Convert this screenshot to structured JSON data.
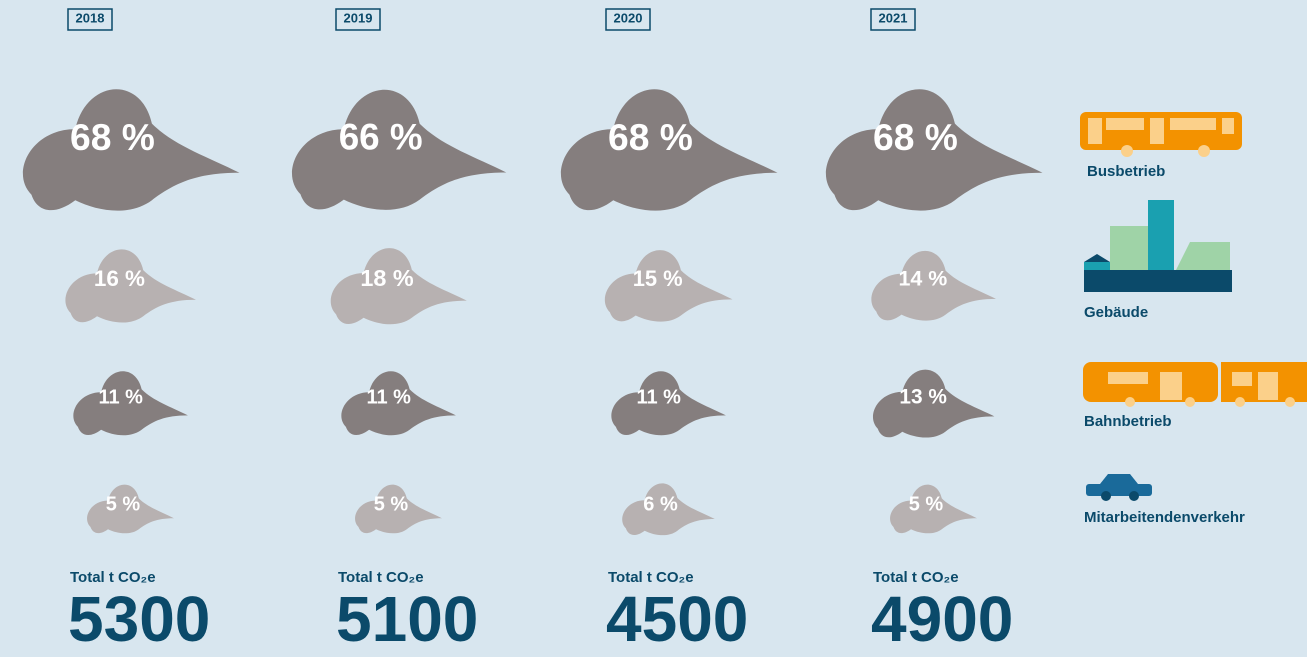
{
  "chart_data": {
    "type": "cloud",
    "categories": [
      "2018",
      "2019",
      "2020",
      "2021"
    ],
    "series": [
      {
        "name": "Busbetrieb",
        "color": "#857e7e",
        "values": [
          68,
          66,
          68,
          68
        ],
        "value_labels": [
          "68 %",
          "66 %",
          "68 %",
          "68 %"
        ]
      },
      {
        "name": "Gebäude",
        "color": "#b7b1b1",
        "values": [
          16,
          18,
          15,
          14
        ],
        "value_labels": [
          "16 %",
          "18 %",
          "15 %",
          "14 %"
        ]
      },
      {
        "name": "Bahnbetrieb",
        "color": "#857e7e",
        "values": [
          11,
          11,
          11,
          13
        ],
        "value_labels": [
          "11 %",
          "11 %",
          "11 %",
          "13 %"
        ]
      },
      {
        "name": "Mitarbeitendenverkehr",
        "color": "#b7b1b1",
        "values": [
          5,
          5,
          6,
          5
        ],
        "value_labels": [
          "5 %",
          "5 %",
          "6 %",
          "5 %"
        ]
      }
    ],
    "totals_label": "Total t CO₂e",
    "totals": [
      5300,
      5100,
      4500,
      4900
    ]
  }
}
